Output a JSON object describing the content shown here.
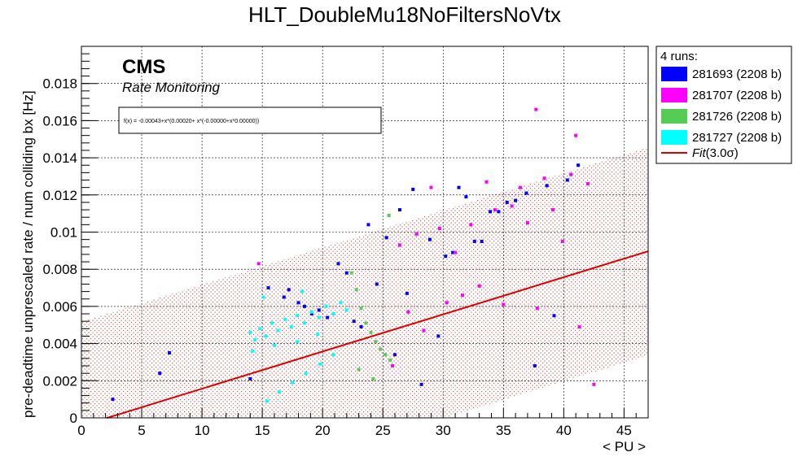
{
  "chart_data": {
    "type": "scatter",
    "title": "HLT_DoubleMu18NoFiltersNoVtx",
    "xlabel": "< PU >",
    "ylabel": "pre-deadtime unprescaled rate / num colliding bx [Hz]",
    "xlim": [
      0,
      47
    ],
    "ylim": [
      0,
      0.02
    ],
    "xticks": [
      0,
      5,
      10,
      15,
      20,
      25,
      30,
      35,
      40,
      45
    ],
    "xtick_labels": [
      "0",
      "5",
      "10",
      "15",
      "20",
      "25",
      "30",
      "35",
      "40",
      "45"
    ],
    "yticks": [
      0,
      0.002,
      0.004,
      0.006,
      0.008,
      0.01,
      0.012,
      0.014,
      0.016,
      0.018
    ],
    "ytick_labels": [
      "0",
      "0.002",
      "0.004",
      "0.006",
      "0.008",
      "0.01",
      "0.012",
      "0.014",
      "0.016",
      "0.018"
    ],
    "grid": true,
    "legend_position": "outside-right",
    "annotation": {
      "experiment": "CMS",
      "subtitle": "Rate Monitoring",
      "fit_formula": "f(x) = -0.00043+x*(0.00020+ x*(-0.00000+x*0.00000))"
    },
    "legend": {
      "header": "4 runs:",
      "entries": [
        {
          "label": "281693 (2208 b)",
          "color": "#0000ff"
        },
        {
          "label": "281707 (2208 b)",
          "color": "#ff00ff"
        },
        {
          "label": "281726 (2208 b)",
          "color": "#55cc55"
        },
        {
          "label": "281727 (2208 b)",
          "color": "#00ffff"
        }
      ],
      "fit_label_main": "Fit",
      "fit_label_sigma": "(3.0σ)",
      "fit_color": "#dd0000"
    },
    "fit": {
      "intercept": -0.00043,
      "slope": 0.0002,
      "x_range": [
        2.1,
        47
      ],
      "band_half_width": 0.0056
    },
    "series": [
      {
        "name": "281693 (2208 b)",
        "color": "#0000ff",
        "x": [
          2.6,
          6.5,
          7.3,
          14.0,
          15.5,
          16.8,
          17.2,
          18.0,
          18.5,
          19.1,
          19.7,
          20.4,
          21.3,
          22.0,
          22.6,
          23.2,
          23.8,
          24.5,
          25.3,
          26.0,
          26.4,
          27.0,
          27.5,
          28.2,
          28.9,
          29.6,
          30.2,
          30.8,
          31.3,
          31.9,
          32.6,
          33.2,
          33.9,
          34.6,
          35.3,
          36.0,
          36.9,
          37.6,
          38.6,
          39.2,
          40.3,
          41.2
        ],
        "y": [
          0.001,
          0.0024,
          0.0035,
          0.0021,
          0.007,
          0.0065,
          0.0069,
          0.0062,
          0.006,
          0.0056,
          0.0058,
          0.0054,
          0.0083,
          0.0078,
          0.0052,
          0.0049,
          0.0104,
          0.0072,
          0.0097,
          0.0034,
          0.0112,
          0.0067,
          0.0123,
          0.0018,
          0.0096,
          0.0044,
          0.0087,
          0.0089,
          0.0124,
          0.0119,
          0.0095,
          0.0095,
          0.0111,
          0.0111,
          0.0116,
          0.0117,
          0.0121,
          0.0028,
          0.0125,
          0.0055,
          0.0128,
          0.0136
        ]
      },
      {
        "name": "281707 (2208 b)",
        "color": "#ff00ff",
        "x": [
          14.7,
          25.8,
          26.4,
          27.1,
          27.8,
          28.4,
          29.0,
          29.7,
          30.3,
          31.0,
          31.6,
          32.3,
          33.0,
          33.6,
          34.3,
          35.0,
          35.7,
          36.4,
          37.0,
          37.8,
          38.4,
          39.1,
          39.9,
          40.6,
          41.3,
          42.0,
          42.5,
          37.7,
          41.0
        ],
        "y": [
          0.0083,
          0.0028,
          0.0093,
          0.0057,
          0.0099,
          0.0047,
          0.0124,
          0.0102,
          0.0062,
          0.0089,
          0.0066,
          0.0104,
          0.0071,
          0.0127,
          0.0112,
          0.0061,
          0.0114,
          0.0124,
          0.0105,
          0.0059,
          0.0129,
          0.0112,
          0.0095,
          0.0131,
          0.0049,
          0.0126,
          0.0018,
          0.0166,
          0.0152
        ]
      },
      {
        "name": "281726 (2208 b)",
        "color": "#55cc55",
        "x": [
          22.4,
          22.8,
          23.2,
          23.6,
          24.0,
          24.4,
          24.8,
          25.2,
          25.6,
          23.0,
          24.2,
          25.5
        ],
        "y": [
          0.0078,
          0.0069,
          0.0059,
          0.0051,
          0.0046,
          0.0041,
          0.0037,
          0.0034,
          0.0031,
          0.0026,
          0.0021,
          0.0109
        ]
      },
      {
        "name": "281727 (2208 b)",
        "color": "#00ffff",
        "x": [
          14.0,
          14.4,
          14.8,
          15.3,
          15.8,
          16.3,
          16.9,
          17.4,
          17.9,
          18.5,
          19.1,
          19.7,
          20.3,
          20.9,
          21.5,
          22.0,
          15.4,
          16.4,
          17.5,
          18.6,
          19.8,
          20.9,
          14.2,
          16.0,
          17.9,
          19.6,
          15.1,
          18.3
        ],
        "y": [
          0.0046,
          0.0042,
          0.0048,
          0.0044,
          0.0051,
          0.0047,
          0.0053,
          0.0049,
          0.0055,
          0.0051,
          0.0057,
          0.0054,
          0.006,
          0.0056,
          0.0062,
          0.0058,
          0.0009,
          0.0014,
          0.0019,
          0.0024,
          0.0029,
          0.0034,
          0.0036,
          0.0039,
          0.0041,
          0.0045,
          0.0065,
          0.0068
        ]
      }
    ]
  }
}
